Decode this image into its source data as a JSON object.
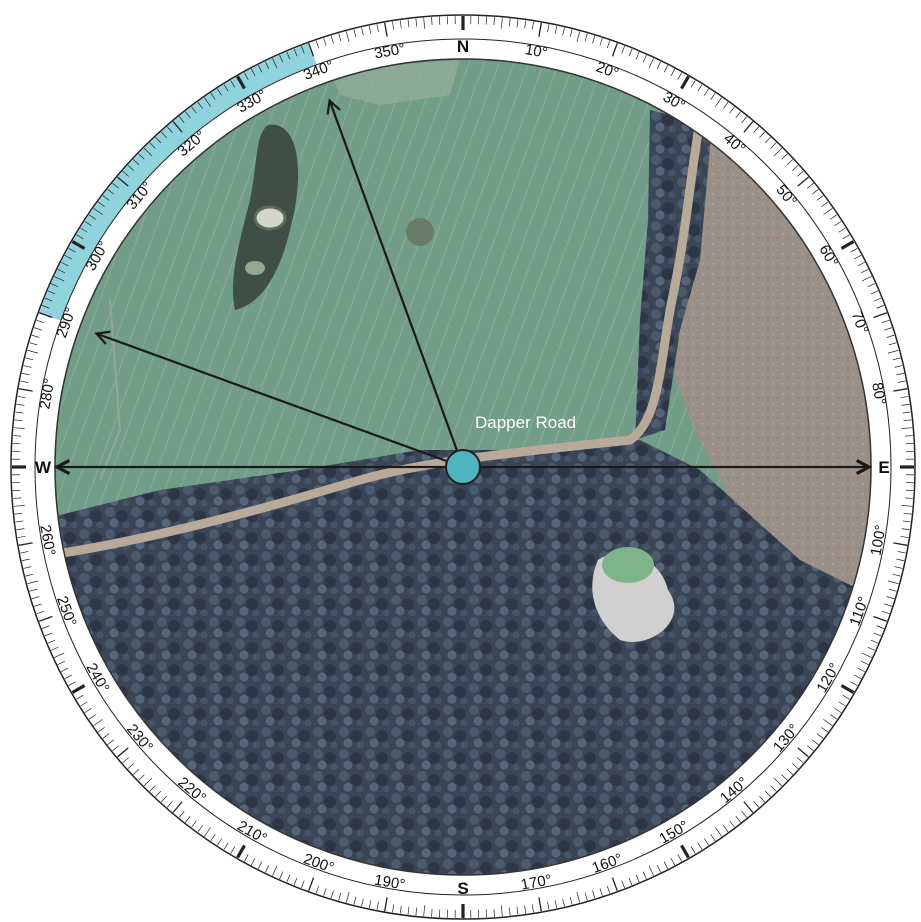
{
  "compass": {
    "cardinals": {
      "north": "N",
      "east": "E",
      "south": "S",
      "west": "W"
    },
    "degree_labels": [
      {
        "bearing": 10,
        "text": "10°"
      },
      {
        "bearing": 20,
        "text": "20°"
      },
      {
        "bearing": 30,
        "text": "30°"
      },
      {
        "bearing": 40,
        "text": "40°"
      },
      {
        "bearing": 50,
        "text": "50°"
      },
      {
        "bearing": 60,
        "text": "60°"
      },
      {
        "bearing": 70,
        "text": "70°"
      },
      {
        "bearing": 80,
        "text": "80°"
      },
      {
        "bearing": 100,
        "text": "100°"
      },
      {
        "bearing": 110,
        "text": "110°"
      },
      {
        "bearing": 120,
        "text": "120°"
      },
      {
        "bearing": 130,
        "text": "130°"
      },
      {
        "bearing": 140,
        "text": "140°"
      },
      {
        "bearing": 150,
        "text": "150°"
      },
      {
        "bearing": 160,
        "text": "160°"
      },
      {
        "bearing": 170,
        "text": "170°"
      },
      {
        "bearing": 190,
        "text": "190°"
      },
      {
        "bearing": 200,
        "text": "200°"
      },
      {
        "bearing": 210,
        "text": "210°"
      },
      {
        "bearing": 220,
        "text": "220°"
      },
      {
        "bearing": 230,
        "text": "230°"
      },
      {
        "bearing": 240,
        "text": "240°"
      },
      {
        "bearing": 250,
        "text": "250°"
      },
      {
        "bearing": 260,
        "text": "260°"
      },
      {
        "bearing": 280,
        "text": "280°"
      },
      {
        "bearing": 290,
        "text": "290°"
      },
      {
        "bearing": 300,
        "text": "300°"
      },
      {
        "bearing": 310,
        "text": "310°"
      },
      {
        "bearing": 320,
        "text": "320°"
      },
      {
        "bearing": 330,
        "text": "330°"
      },
      {
        "bearing": 340,
        "text": "340°"
      },
      {
        "bearing": 350,
        "text": "350°"
      }
    ],
    "highlight_range_deg": [
      290,
      340
    ],
    "highlight_color": "#8fd3dc",
    "arrow_bearings_deg": [
      90,
      270,
      290,
      340
    ],
    "center_marker_color": "#4fb3c0"
  },
  "map": {
    "road_label": "Dapper Road",
    "colors": {
      "field": "#6f9a86",
      "field_light": "#8db5a0",
      "forest": "#3e4a5a",
      "forest_dark": "#2e3848",
      "dirt": "#a89888",
      "paddock": "#9a8f86",
      "dam": "#7fb48a"
    }
  }
}
